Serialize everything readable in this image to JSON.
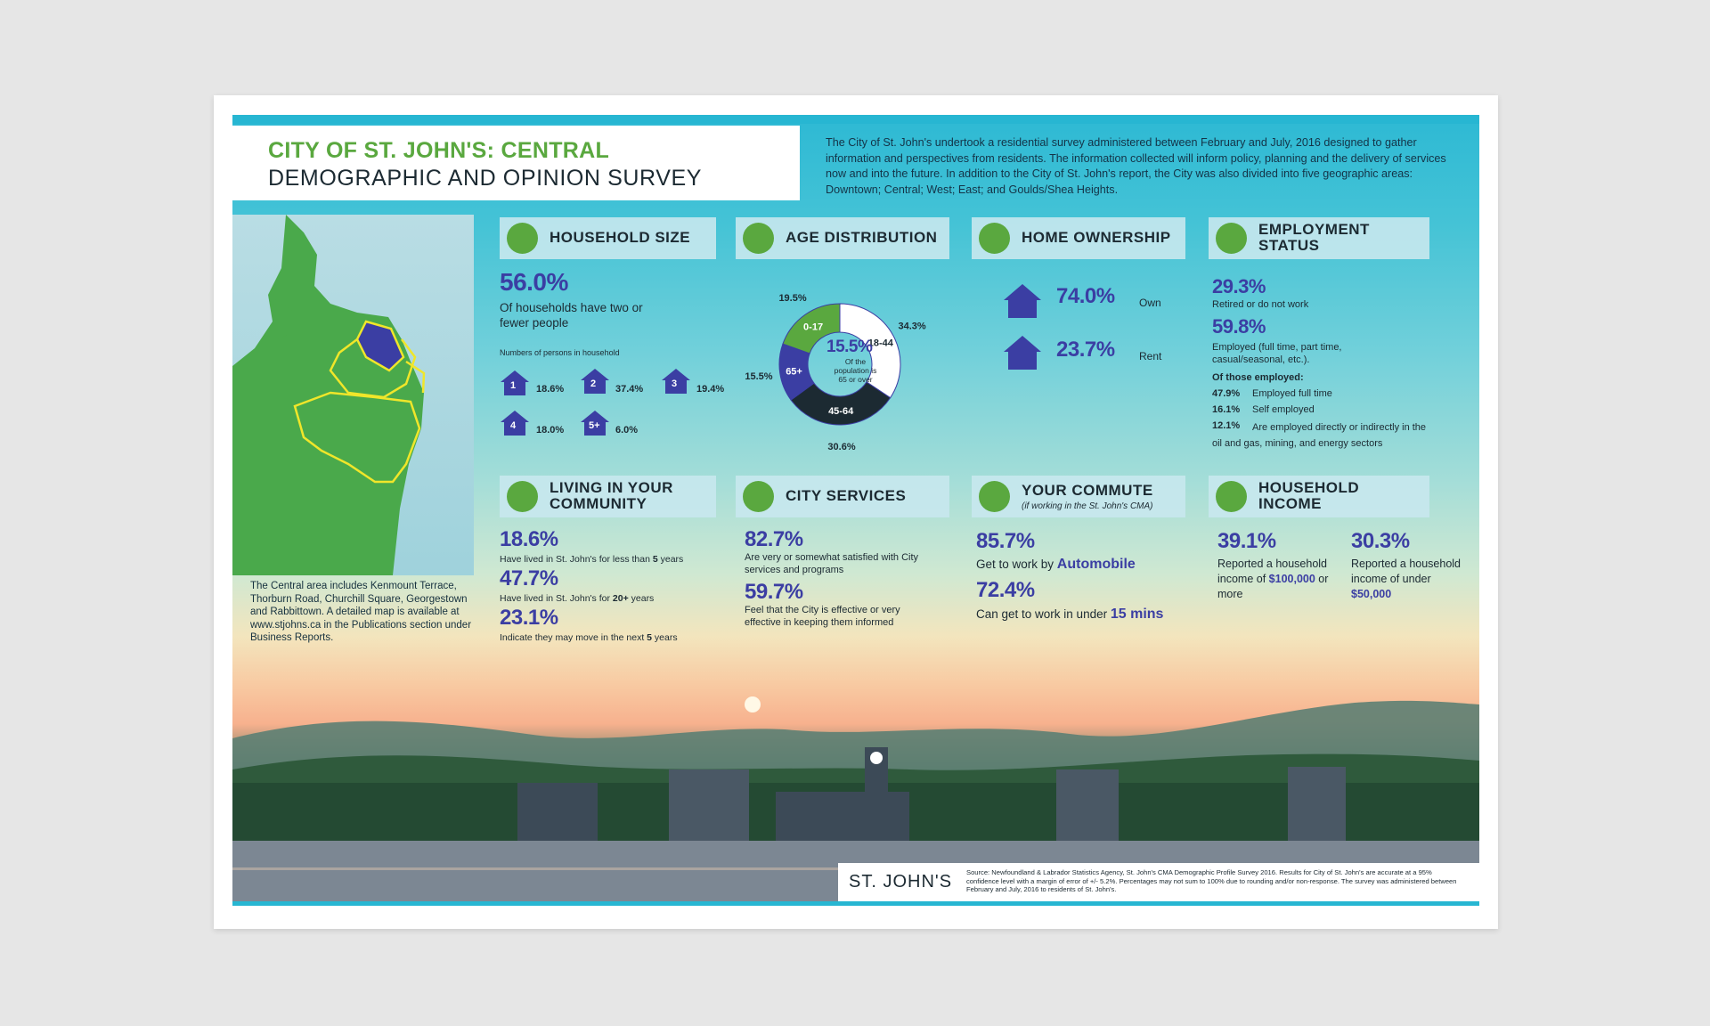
{
  "title": {
    "line1": "CITY OF ST. JOHN'S: CENTRAL",
    "line2": "DEMOGRAPHIC AND OPINION SURVEY"
  },
  "intro": "The City of St. John's undertook a residential survey administered between February and July, 2016 designed to gather information and perspectives from residents. The information collected will inform policy, planning and the delivery of services now and into the future. In addition to the City of St. John's report, the City was also divided into five geographic areas: Downtown; Central; West; East; and Goulds/Shea Heights.",
  "map_note": "The Central area includes Kenmount Terrace, Thorburn Road, Churchill Square, Georgestown and Rabbittown. A detailed map is available at www.stjohns.ca in the Publications section under Business Reports.",
  "household_size": {
    "header": "HOUSEHOLD SIZE",
    "stat": "56.0%",
    "stat_text": "Of households have two or fewer people",
    "sub_label": "Numbers of persons in household",
    "items": [
      {
        "n": "1",
        "pct": "18.6%"
      },
      {
        "n": "2",
        "pct": "37.4%"
      },
      {
        "n": "3",
        "pct": "19.4%"
      },
      {
        "n": "4",
        "pct": "18.0%"
      },
      {
        "n": "5+",
        "pct": "6.0%"
      }
    ]
  },
  "age_distribution": {
    "header": "AGE DISTRIBUTION",
    "center_value": "15.5%",
    "center_text": "Of the population is 65 or over",
    "chart_data": {
      "type": "pie",
      "categories": [
        "18-44",
        "45-64",
        "65+",
        "0-17"
      ],
      "values": [
        34.3,
        30.6,
        15.5,
        19.5
      ],
      "labels": [
        "34.3%",
        "30.6%",
        "15.5%",
        "19.5%"
      ],
      "colors": [
        "#ffffff",
        "#1c2a32",
        "#3b3ea3",
        "#5aa83f"
      ]
    }
  },
  "home_ownership": {
    "header": "HOME OWNERSHIP",
    "own_value": "74.0%",
    "own_label": "Own",
    "rent_value": "23.7%",
    "rent_label": "Rent"
  },
  "employment": {
    "header": "EMPLOYMENT STATUS",
    "retired_value": "29.3%",
    "retired_label": "Retired or do not work",
    "employed_value": "59.8%",
    "employed_label": "Employed (full time, part time, casual/seasonal, etc.).",
    "of_employed": "Of those employed:",
    "fulltime_value": "47.9%",
    "fulltime_label": "Employed full time",
    "self_value": "16.1%",
    "self_label": "Self employed",
    "oil_value": "12.1%",
    "oil_label": "Are employed directly or indirectly in the oil and gas, mining, and energy sectors"
  },
  "living": {
    "header": "LIVING IN YOUR COMMUNITY",
    "items": [
      {
        "value": "18.6%",
        "pre": "Have lived in St. John's for less than ",
        "em": "5",
        "post": " years"
      },
      {
        "value": "47.7%",
        "pre": "Have lived in St. John's for ",
        "em": "20+",
        "post": " years"
      },
      {
        "value": "23.1%",
        "pre": "Indicate they may move in the next ",
        "em": "5",
        "post": " years"
      }
    ]
  },
  "city_services": {
    "header": "CITY SERVICES",
    "items": [
      {
        "value": "82.7%",
        "text": "Are very or somewhat satisfied with City services and programs"
      },
      {
        "value": "59.7%",
        "text": "Feel that the City is effective or very effective in keeping them informed"
      }
    ]
  },
  "commute": {
    "header": "YOUR COMMUTE",
    "subheader": "(if working in the St. John's CMA)",
    "auto_value": "85.7%",
    "auto_pre": "Get to work by ",
    "auto_em": "Automobile",
    "time_value": "72.4%",
    "time_pre": "Can get to work in under ",
    "time_em": "15 mins"
  },
  "income": {
    "header": "HOUSEHOLD INCOME",
    "high_value": "39.1%",
    "high_text": "Reported a household income of ",
    "high_em": "$100,000",
    "high_post": " or more",
    "low_value": "30.3%",
    "low_text": "Reported a household income of under ",
    "low_em": "$50,000"
  },
  "footer": {
    "logo": "ST. JOHN'S",
    "source": "Source: Newfoundland & Labrador Statistics Agency, St. John's CMA Demographic Profile Survey 2016. Results for City of St. John's are accurate at a 95% confidence level with a margin of error of +/- 5.2%. Percentages may not sum to 100% due to rounding and/or non-response. The survey was administered between February and July, 2016 to residents of St. John's."
  },
  "colors": {
    "accent_green": "#5aa83f",
    "stat_blue": "#3b3ea3",
    "sky": "#2db9d4",
    "dark": "#1c2a32"
  }
}
